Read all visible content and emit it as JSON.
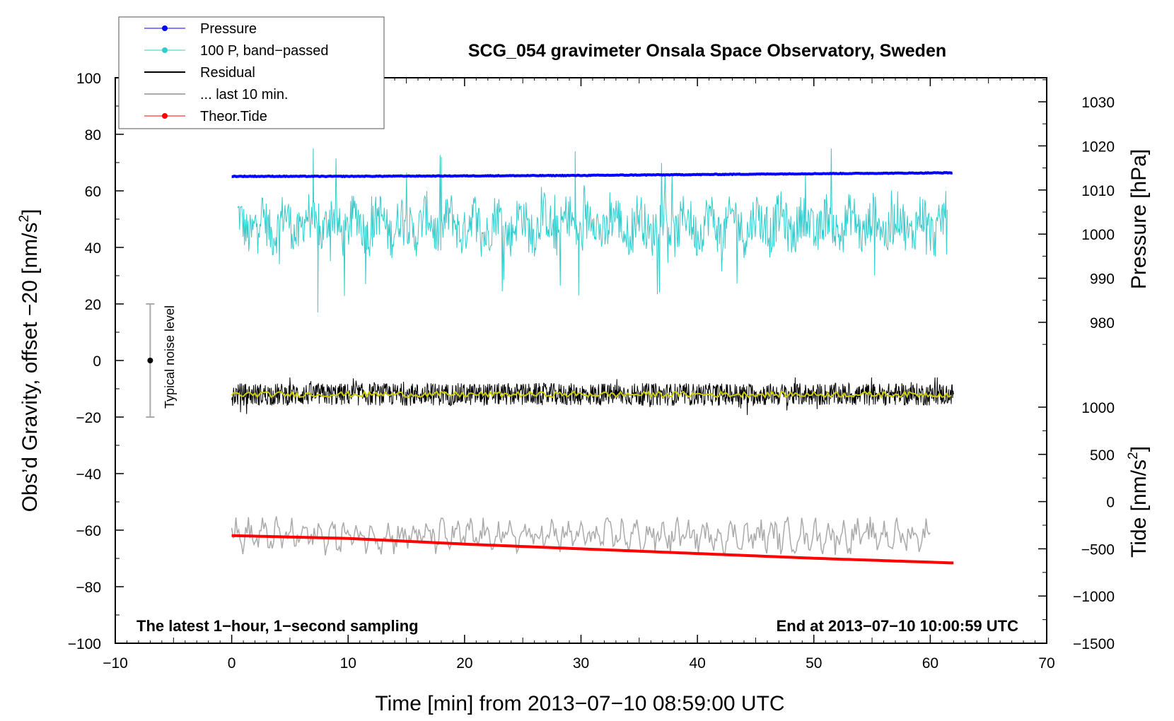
{
  "chart_data": {
    "type": "line",
    "title": "SCG_054 gravimeter Onsala Space Observatory, Sweden",
    "xlabel": "Time [min] from 2013−07−10 08:59:00 UTC",
    "ylabel": "Obs’d Gravity, offset −20 [nm/s²]",
    "ylabel_parts": {
      "main": "Obs’d Gravity, offset −20 [nm/s",
      "sup": "2",
      "end": "]"
    },
    "y2label_pressure": "Pressure [hPa]",
    "y2label_tide_parts": {
      "main": "Tide [nm/s",
      "sup": "2",
      "end": "]"
    },
    "xlim": [
      -10,
      70
    ],
    "ylim": [
      -100,
      100
    ],
    "x_ticks": [
      "−10",
      "0",
      "10",
      "20",
      "30",
      "40",
      "50",
      "60",
      "70"
    ],
    "x_tick_values": [
      -10,
      0,
      10,
      20,
      30,
      40,
      50,
      60,
      70
    ],
    "y_ticks": [
      "100",
      "80",
      "60",
      "40",
      "20",
      "0",
      "−20",
      "−40",
      "−60",
      "−80",
      "−100"
    ],
    "y_tick_values": [
      100,
      80,
      60,
      40,
      20,
      0,
      -20,
      -40,
      -60,
      -80,
      -100
    ],
    "pressure_ticks": [
      "1030",
      "1020",
      "1010",
      "1000",
      "990",
      "980"
    ],
    "pressure_tick_values": [
      1030,
      1020,
      1010,
      1000,
      990,
      980
    ],
    "pressure_axis_map": {
      "hpa": [
        980,
        1030
      ],
      "left_axis_equiv": [
        13.5,
        91.5
      ]
    },
    "tide_ticks": [
      "1000",
      "500",
      "0",
      "−500",
      "−1000",
      "−1500"
    ],
    "tide_tick_values": [
      1000,
      500,
      0,
      -500,
      -1000,
      -1500
    ],
    "tide_axis_map": {
      "nms2": [
        -1500,
        1000
      ],
      "left_axis_equiv": [
        -100,
        -16.5
      ]
    },
    "annotations": {
      "bottom_left": "The latest 1−hour, 1−second sampling",
      "bottom_right": "End at 2013−07−10 10:00:59 UTC",
      "noise_label": "Typical noise level"
    },
    "noise_bar": {
      "x": -7,
      "center": 0,
      "low": -20,
      "high": 20
    },
    "legend_position": "top-left",
    "series": [
      {
        "name": "Pressure",
        "color": "#0000ff",
        "marker": "dot",
        "axis": "pressure",
        "x": [
          0,
          10,
          20,
          30,
          40,
          50,
          62
        ],
        "values": [
          1013.1,
          1013.1,
          1013.2,
          1013.3,
          1013.5,
          1013.7,
          1013.9
        ]
      },
      {
        "name": "100 P, band−passed",
        "color": "#33cccc",
        "marker": "dot",
        "axis": "left",
        "x_range": [
          0.5,
          61.5
        ],
        "mean": 48,
        "range": [
          17,
          75
        ]
      },
      {
        "name": "Residual",
        "color": "#000000",
        "marker": "none",
        "axis": "left",
        "x_range": [
          0,
          62
        ],
        "mean": -12,
        "range": [
          -20,
          -6
        ]
      },
      {
        "name": "... last 10 min.",
        "color": "#aaaaaa",
        "marker": "none",
        "axis": "left",
        "x_range": [
          0,
          60
        ],
        "mean": -62,
        "range": [
          -69,
          -55
        ]
      },
      {
        "name": "Theor.Tide",
        "color": "#ff0000",
        "marker": "dot",
        "axis": "tide",
        "x": [
          0,
          10,
          20,
          30,
          40,
          50,
          62
        ],
        "values": [
          -360,
          -390,
          -450,
          -500,
          -550,
          -600,
          -650
        ]
      },
      {
        "name": "",
        "color": "#cccc00",
        "marker": "none",
        "axis": "left",
        "x_range": [
          0,
          62
        ],
        "mean": -12,
        "range": [
          -14,
          -10
        ]
      }
    ]
  }
}
